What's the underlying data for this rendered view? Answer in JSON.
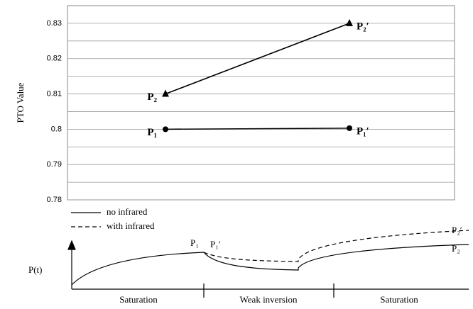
{
  "chart_data": {
    "type": "line",
    "y_label": "PTO Value",
    "categories": [
      null,
      null
    ],
    "series": [
      {
        "labels": [
          "P₂",
          "P₂′"
        ],
        "marker": "triangle",
        "color": "#000000",
        "values": [
          0.81,
          0.83
        ]
      },
      {
        "labels": [
          "P₁",
          "P₁′"
        ],
        "marker": "circle",
        "color": "#000000",
        "values": [
          0.8,
          0.8003
        ]
      }
    ],
    "ylim": [
      0.78,
      0.835
    ],
    "yticks": [
      0.78,
      0.79,
      0.8,
      0.81,
      0.82,
      0.83
    ],
    "minor_yticks": [
      0.785,
      0.795,
      0.805,
      0.815,
      0.825
    ],
    "grid": true
  },
  "diagram": {
    "legend": [
      "no infrared",
      "with infrared"
    ],
    "y_label": "P(t)",
    "curve_labels": [
      "P₁",
      "P₁′",
      "P₂′",
      "P₂"
    ],
    "regions": [
      "Saturation",
      "Weak inversion",
      "Saturation"
    ]
  }
}
